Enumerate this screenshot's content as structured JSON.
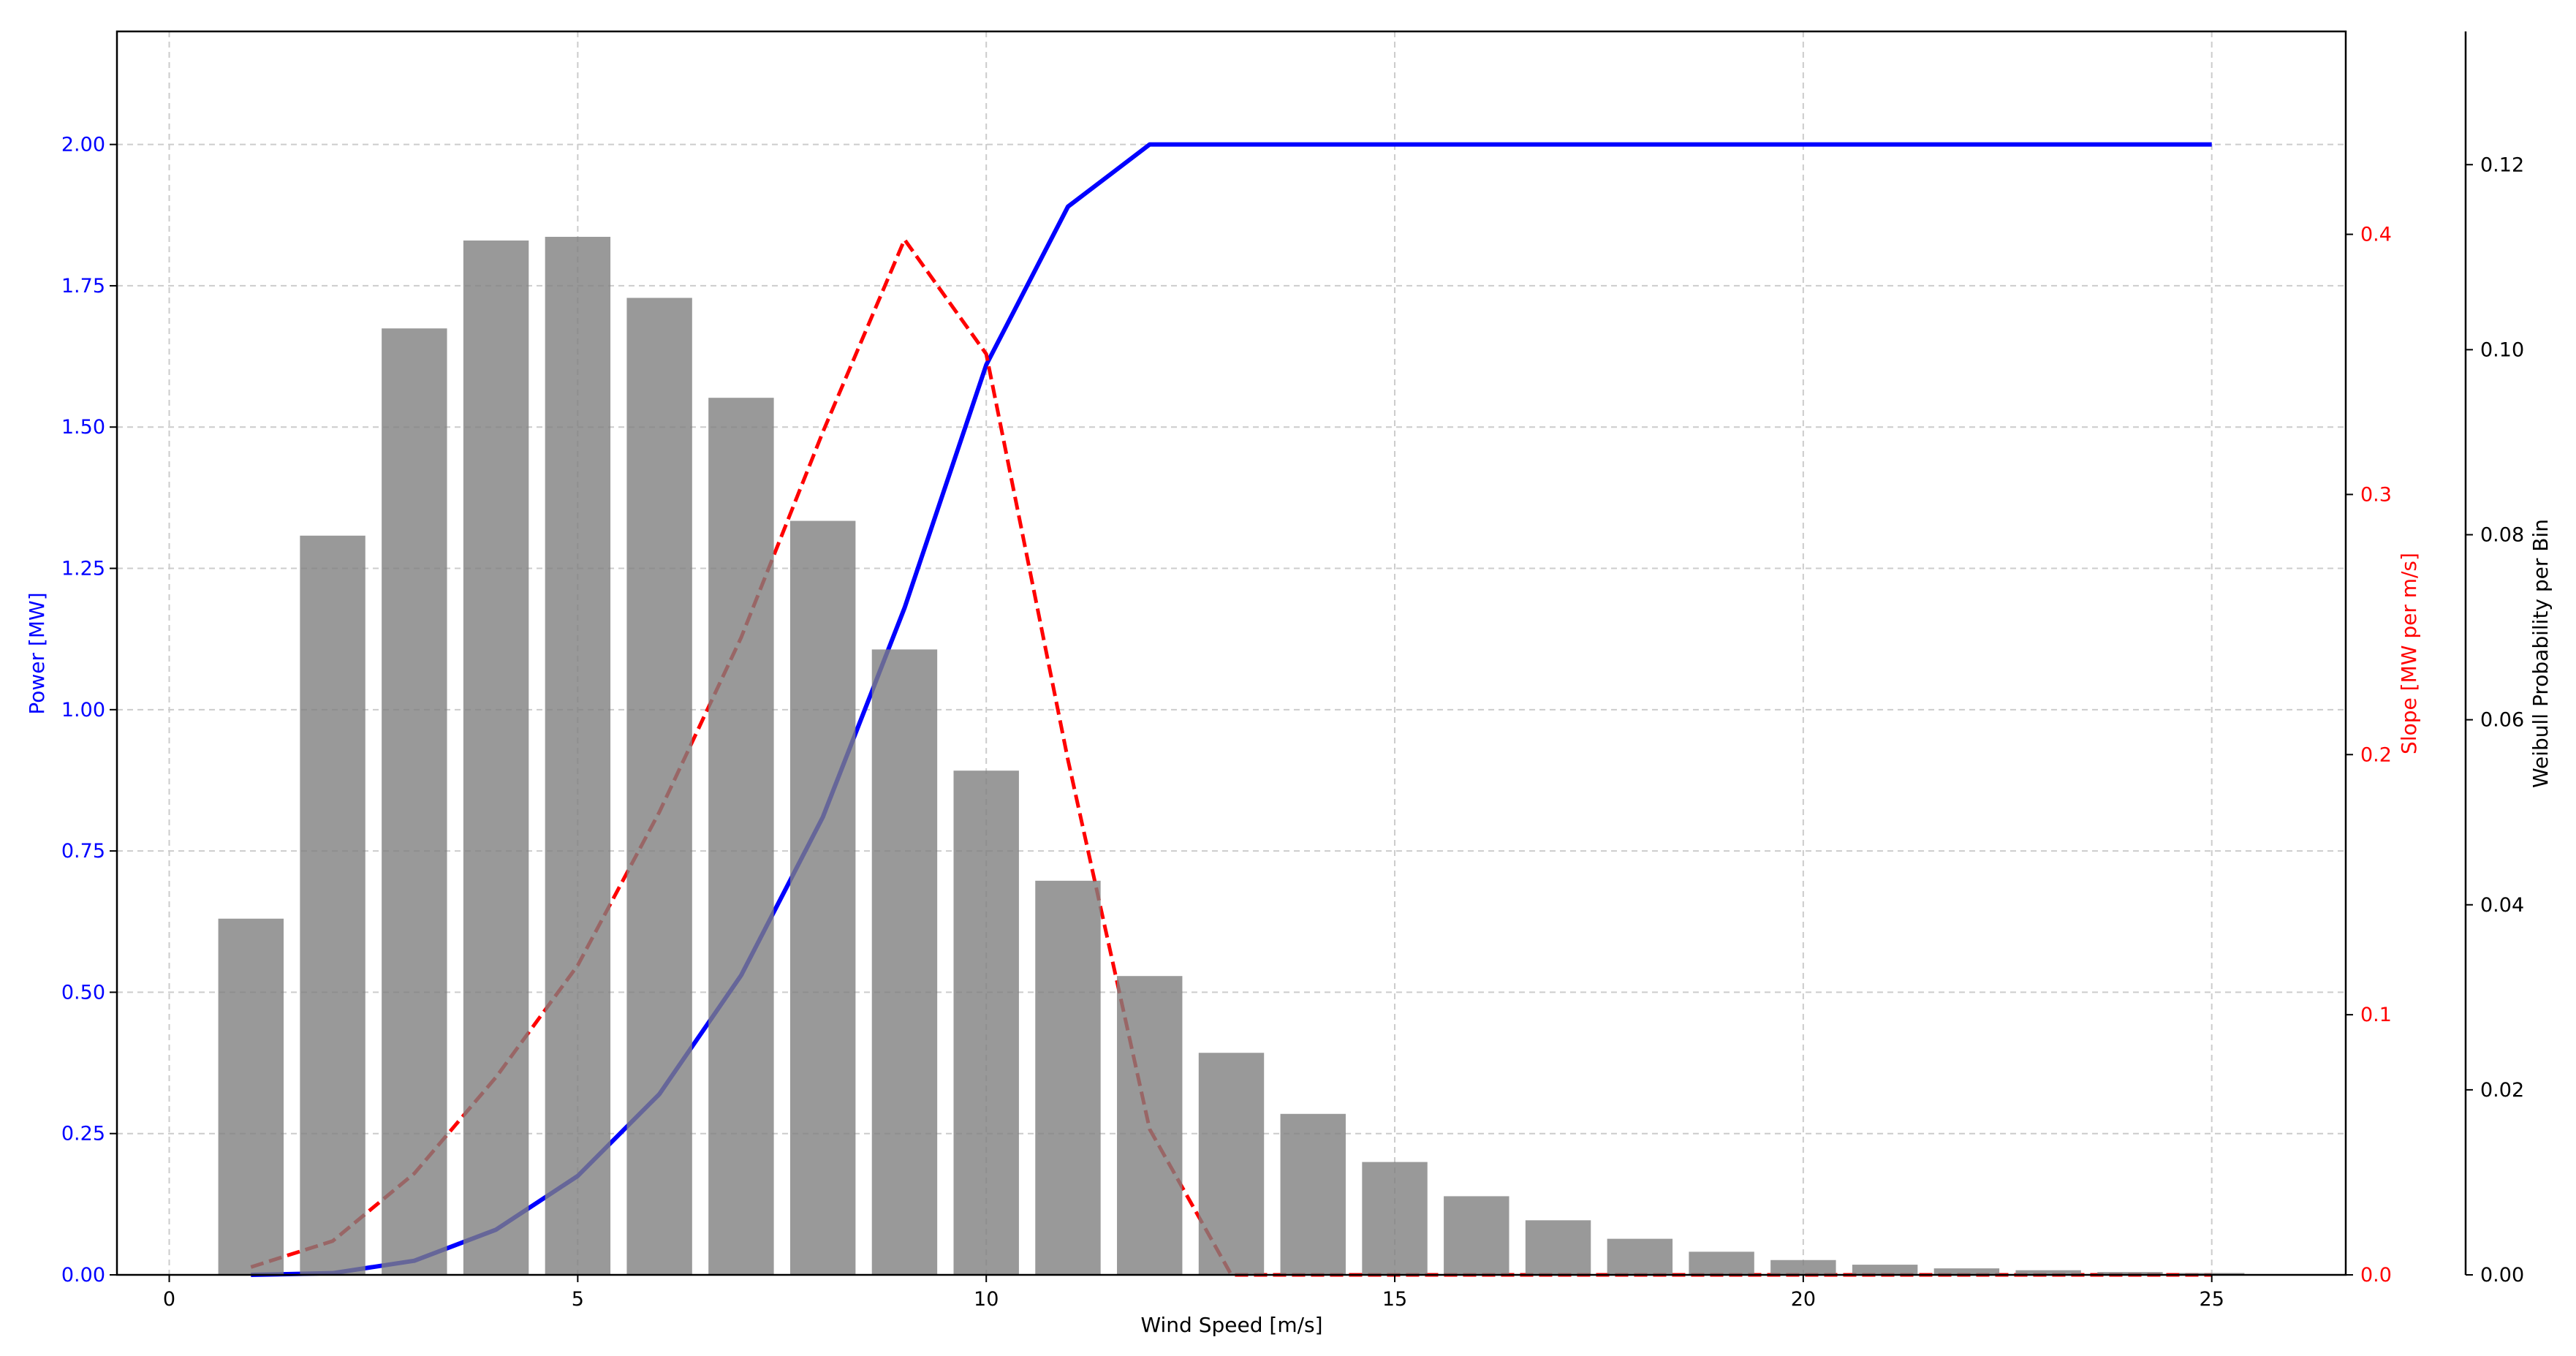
{
  "chart_data": {
    "type": "bar+line",
    "xlabel": "Wind Speed [m/s]",
    "ylabel_left": "Power [MW]",
    "ylabel_right": "Slope [MW per m/s]",
    "ylabel_right2": "Weibull Probability per Bin",
    "xlim": [
      -0.64,
      26.64
    ],
    "ylim_power": [
      0,
      2.2
    ],
    "ylim_slope": [
      0,
      0.478
    ],
    "ylim_prob": [
      0,
      0.1344
    ],
    "grid": true,
    "x_ticks": [
      "0",
      "5",
      "10",
      "15",
      "20",
      "25"
    ],
    "power_ticks": [
      "0.00",
      "0.25",
      "0.50",
      "0.75",
      "1.00",
      "1.25",
      "1.50",
      "1.75",
      "2.00"
    ],
    "slope_ticks": [
      "0.0",
      "0.1",
      "0.2",
      "0.3",
      "0.4"
    ],
    "prob_ticks": [
      "0.00",
      "0.02",
      "0.04",
      "0.06",
      "0.08",
      "0.10",
      "0.12"
    ],
    "x": [
      1,
      2,
      3,
      4,
      5,
      6,
      7,
      8,
      9,
      10,
      11,
      12,
      13,
      14,
      15,
      16,
      17,
      18,
      19,
      20,
      21,
      22,
      23,
      24,
      25
    ],
    "power": [
      0.0,
      0.003,
      0.025,
      0.08,
      0.175,
      0.32,
      0.53,
      0.81,
      1.18,
      1.61,
      1.89,
      2.0,
      2.0,
      2.0,
      2.0,
      2.0,
      2.0,
      2.0,
      2.0,
      2.0,
      2.0,
      2.0,
      2.0,
      2.0,
      2.0
    ],
    "slope": [
      0.003,
      0.013,
      0.039,
      0.076,
      0.119,
      0.178,
      0.245,
      0.324,
      0.398,
      0.354,
      0.198,
      0.056,
      0,
      0,
      0,
      0,
      0,
      0,
      0,
      0,
      0,
      0,
      0,
      0,
      0
    ],
    "probability": [
      0.0385,
      0.0799,
      0.1023,
      0.1118,
      0.1122,
      0.1056,
      0.0948,
      0.0815,
      0.0676,
      0.0545,
      0.0426,
      0.0323,
      0.024,
      0.0174,
      0.0122,
      0.0085,
      0.0059,
      0.0039,
      0.0025,
      0.0016,
      0.0011,
      0.0007,
      0.0005,
      0.0003,
      0.0002
    ],
    "bar_width": 0.8,
    "colors": {
      "power": "#0000ff",
      "slope": "#ff0000",
      "bars": "#808080",
      "bar_opacity": 0.8,
      "grid": "#cccccc",
      "axis": "#000000"
    }
  }
}
